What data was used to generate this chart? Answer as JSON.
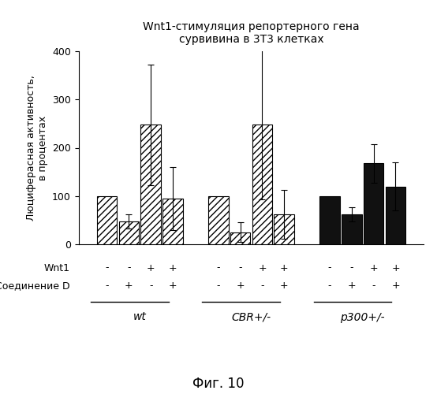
{
  "title_line1": "Wnt1-стимуляция репортерного гена",
  "title_line2": "сурвивина в 3Т3 клетках",
  "ylabel_line1": "Люциферасная активность,",
  "ylabel_line2": "в процентах",
  "xlabel_bottom": "Фиг. 10",
  "ylim": [
    0,
    400
  ],
  "yticks": [
    0,
    100,
    200,
    300,
    400
  ],
  "groups": [
    "wt",
    "CBR+/-",
    "p300+/-"
  ],
  "wnt1_labels": [
    "-",
    "-",
    "+",
    "+",
    "-",
    "-",
    "+",
    "+",
    "-",
    "-",
    "+",
    "+"
  ],
  "compound_labels": [
    "-",
    "+",
    "-",
    "+",
    "-",
    "+",
    "-",
    "+",
    "-",
    "+",
    "-",
    "+"
  ],
  "bar_values": [
    100,
    47,
    248,
    95,
    100,
    25,
    248,
    62,
    100,
    62,
    168,
    120
  ],
  "bar_errors": [
    0,
    15,
    125,
    65,
    0,
    20,
    155,
    50,
    0,
    15,
    40,
    50
  ],
  "hatch_pattern": "////",
  "bar_edgecolor": "#000000",
  "background_color": "#ffffff",
  "row_label_wnt1": "Wnt1",
  "row_label_compound": "Соединение D"
}
